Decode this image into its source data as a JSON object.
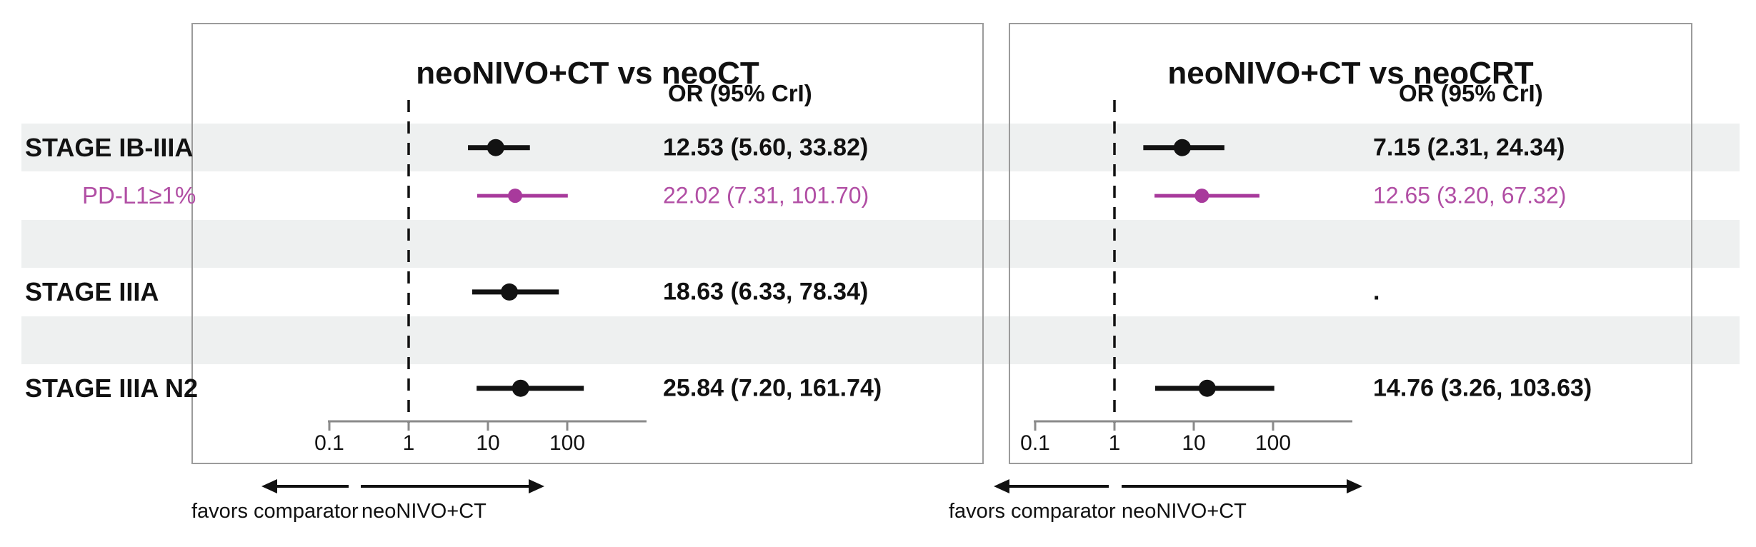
{
  "colors": {
    "band": "#eef0f0",
    "box_border": "#9b9b9b",
    "axis": "#8a8a8a",
    "text": "#111111",
    "marker_black": "#121212",
    "magenta": "#a83a9c",
    "magenta_text": "#b14ea4"
  },
  "figure": {
    "row_labels": [
      {
        "text": "STAGE IB-IIIA",
        "style": "stage"
      },
      {
        "text": "PD-L1≥1%",
        "style": "pdl1"
      },
      {
        "text": "",
        "style": "blank"
      },
      {
        "text": "STAGE IIIA",
        "style": "stage"
      },
      {
        "text": "",
        "style": "blank"
      },
      {
        "text": "STAGE IIIA N2",
        "style": "stage"
      }
    ]
  },
  "chart_data": [
    {
      "type": "forest",
      "title": "neoNIVO+CT vs neoCT",
      "effect_header": "OR (95% CrI)",
      "x_scale": "log10",
      "x_ticks": [
        0.1,
        1,
        10,
        100
      ],
      "x_range": [
        0.1,
        1000
      ],
      "reference_line": 1,
      "estimates": [
        {
          "row": 0,
          "label": "STAGE IB-IIIA",
          "or": 12.53,
          "ci_low": 5.6,
          "ci_high": 33.82,
          "text": "12.53 (5.60, 33.82)",
          "series": "primary"
        },
        {
          "row": 1,
          "label": "PD-L1≥1%",
          "or": 22.02,
          "ci_low": 7.31,
          "ci_high": 101.7,
          "text": "22.02 (7.31, 101.70)",
          "series": "pdl1"
        },
        {
          "row": 3,
          "label": "STAGE IIIA",
          "or": 18.63,
          "ci_low": 6.33,
          "ci_high": 78.34,
          "text": "18.63 (6.33, 78.34)",
          "series": "primary"
        },
        {
          "row": 5,
          "label": "STAGE IIIA N2",
          "or": 25.84,
          "ci_low": 7.2,
          "ci_high": 161.74,
          "text": "25.84 (7.20, 161.74)",
          "series": "primary"
        }
      ],
      "footer": {
        "left": "favors comparator",
        "right": "neoNIVO+CT"
      }
    },
    {
      "type": "forest",
      "title": "neoNIVO+CT vs neoCRT",
      "effect_header": "OR (95% CrI)",
      "x_scale": "log10",
      "x_ticks": [
        0.1,
        1,
        10,
        100
      ],
      "x_range": [
        0.1,
        1000
      ],
      "reference_line": 1,
      "estimates": [
        {
          "row": 0,
          "label": "STAGE IB-IIIA",
          "or": 7.15,
          "ci_low": 2.31,
          "ci_high": 24.34,
          "text": "7.15 (2.31, 24.34)",
          "series": "primary"
        },
        {
          "row": 1,
          "label": "PD-L1≥1%",
          "or": 12.65,
          "ci_low": 3.2,
          "ci_high": 67.32,
          "text": "12.65 (3.20, 67.32)",
          "series": "pdl1"
        },
        {
          "row": 3,
          "label": "STAGE IIIA",
          "or": null,
          "ci_low": null,
          "ci_high": null,
          "text": ".",
          "series": "missing"
        },
        {
          "row": 5,
          "label": "STAGE IIIA N2",
          "or": 14.76,
          "ci_low": 3.26,
          "ci_high": 103.63,
          "text": "14.76 (3.26, 103.63)",
          "series": "primary"
        }
      ],
      "footer": {
        "left": "favors comparator",
        "right": "neoNIVO+CT"
      }
    }
  ]
}
